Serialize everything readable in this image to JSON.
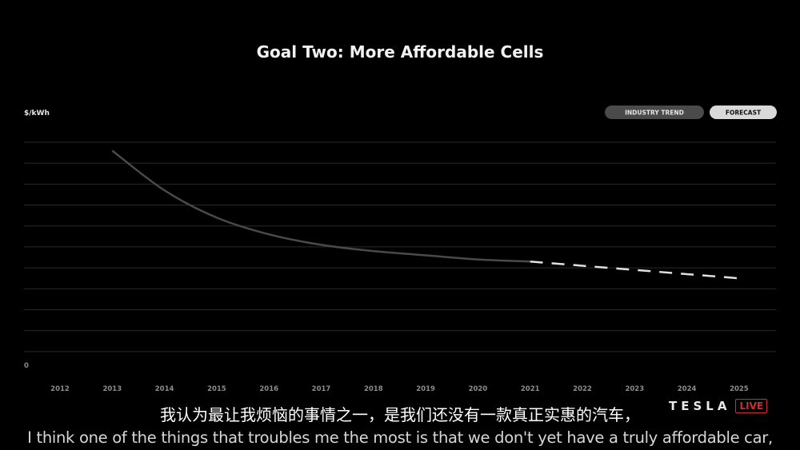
{
  "chart_data": {
    "type": "line",
    "title": "Goal Two: More Affordable Cells",
    "ylabel": "$/kWh",
    "xlabel": "",
    "y_tick_labels": [
      {
        "value": 0,
        "label": "0"
      }
    ],
    "ylim": [
      0,
      11
    ],
    "xlim": [
      2012,
      2025
    ],
    "x_ticks": [
      "2012",
      "2013",
      "2014",
      "2015",
      "2016",
      "2017",
      "2018",
      "2019",
      "2020",
      "2021",
      "2022",
      "2023",
      "2024",
      "2025"
    ],
    "grid": true,
    "legend": {
      "placement": "top-right",
      "entries": [
        "INDUSTRY TREND",
        "FORECAST"
      ]
    },
    "series": [
      {
        "name": "INDUSTRY TREND",
        "style": "solid",
        "color": "#4a4a4a",
        "points": [
          {
            "x": 2013,
            "y": 10.6
          },
          {
            "x": 2014,
            "y": 8.7
          },
          {
            "x": 2015,
            "y": 7.4
          },
          {
            "x": 2016,
            "y": 6.6
          },
          {
            "x": 2017,
            "y": 6.1
          },
          {
            "x": 2018,
            "y": 5.8
          },
          {
            "x": 2019,
            "y": 5.6
          },
          {
            "x": 2020,
            "y": 5.4
          },
          {
            "x": 2021,
            "y": 5.3
          }
        ]
      },
      {
        "name": "FORECAST",
        "style": "dashed",
        "color": "#e0e0e0",
        "points": [
          {
            "x": 2021,
            "y": 5.3
          },
          {
            "x": 2022,
            "y": 5.1
          },
          {
            "x": 2023,
            "y": 4.9
          },
          {
            "x": 2024,
            "y": 4.7
          },
          {
            "x": 2025,
            "y": 4.5
          }
        ]
      }
    ]
  },
  "legend_colors": {
    "industry_trend_bg": "#4a4a4a",
    "industry_trend_text": "#e6e6e6",
    "forecast_bg": "#d9d9d9",
    "forecast_text": "#111111"
  },
  "subtitles": {
    "chinese": "我认为最让我烦恼的事情之一，是我们还没有一款真正实惠的汽车，",
    "english": "I think one of the things that troubles me the most is that we don't yet have a truly affordable car,"
  },
  "brand": {
    "word": "TESLA",
    "badge": "LIVE",
    "badge_color": "#d52a2a"
  }
}
